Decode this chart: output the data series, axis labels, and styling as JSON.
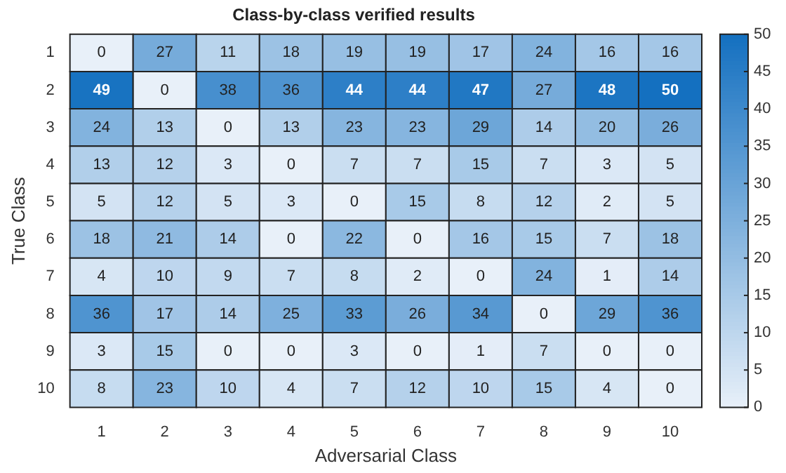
{
  "chart_data": {
    "type": "heatmap",
    "title": "Class-by-class verified results",
    "xlabel": "Adversarial Class",
    "ylabel": "True Class",
    "categories": [
      "1",
      "2",
      "3",
      "4",
      "5",
      "6",
      "7",
      "8",
      "9",
      "10"
    ],
    "y_categories": [
      "1",
      "2",
      "3",
      "4",
      "5",
      "6",
      "7",
      "8",
      "9",
      "10"
    ],
    "cells": [
      [
        0,
        27,
        11,
        18,
        19,
        19,
        17,
        24,
        16,
        16
      ],
      [
        49,
        0,
        38,
        36,
        44,
        44,
        47,
        27,
        48,
        50
      ],
      [
        24,
        13,
        0,
        13,
        23,
        23,
        29,
        14,
        20,
        26
      ],
      [
        13,
        12,
        3,
        0,
        7,
        7,
        15,
        7,
        3,
        5
      ],
      [
        5,
        12,
        5,
        3,
        0,
        15,
        8,
        12,
        2,
        5
      ],
      [
        18,
        21,
        14,
        0,
        22,
        0,
        16,
        15,
        7,
        18
      ],
      [
        4,
        10,
        9,
        7,
        8,
        2,
        0,
        24,
        1,
        14
      ],
      [
        36,
        17,
        14,
        25,
        33,
        26,
        34,
        0,
        29,
        36
      ],
      [
        3,
        15,
        0,
        0,
        3,
        0,
        1,
        7,
        0,
        0
      ],
      [
        8,
        23,
        10,
        4,
        7,
        12,
        10,
        15,
        4,
        0
      ]
    ],
    "clim": [
      0,
      50
    ],
    "cticks": [
      0,
      5,
      10,
      15,
      20,
      25,
      30,
      35,
      40,
      45,
      50
    ],
    "colors": [
      "#e8f0f9",
      "#1470c0"
    ],
    "data_labels": true
  }
}
